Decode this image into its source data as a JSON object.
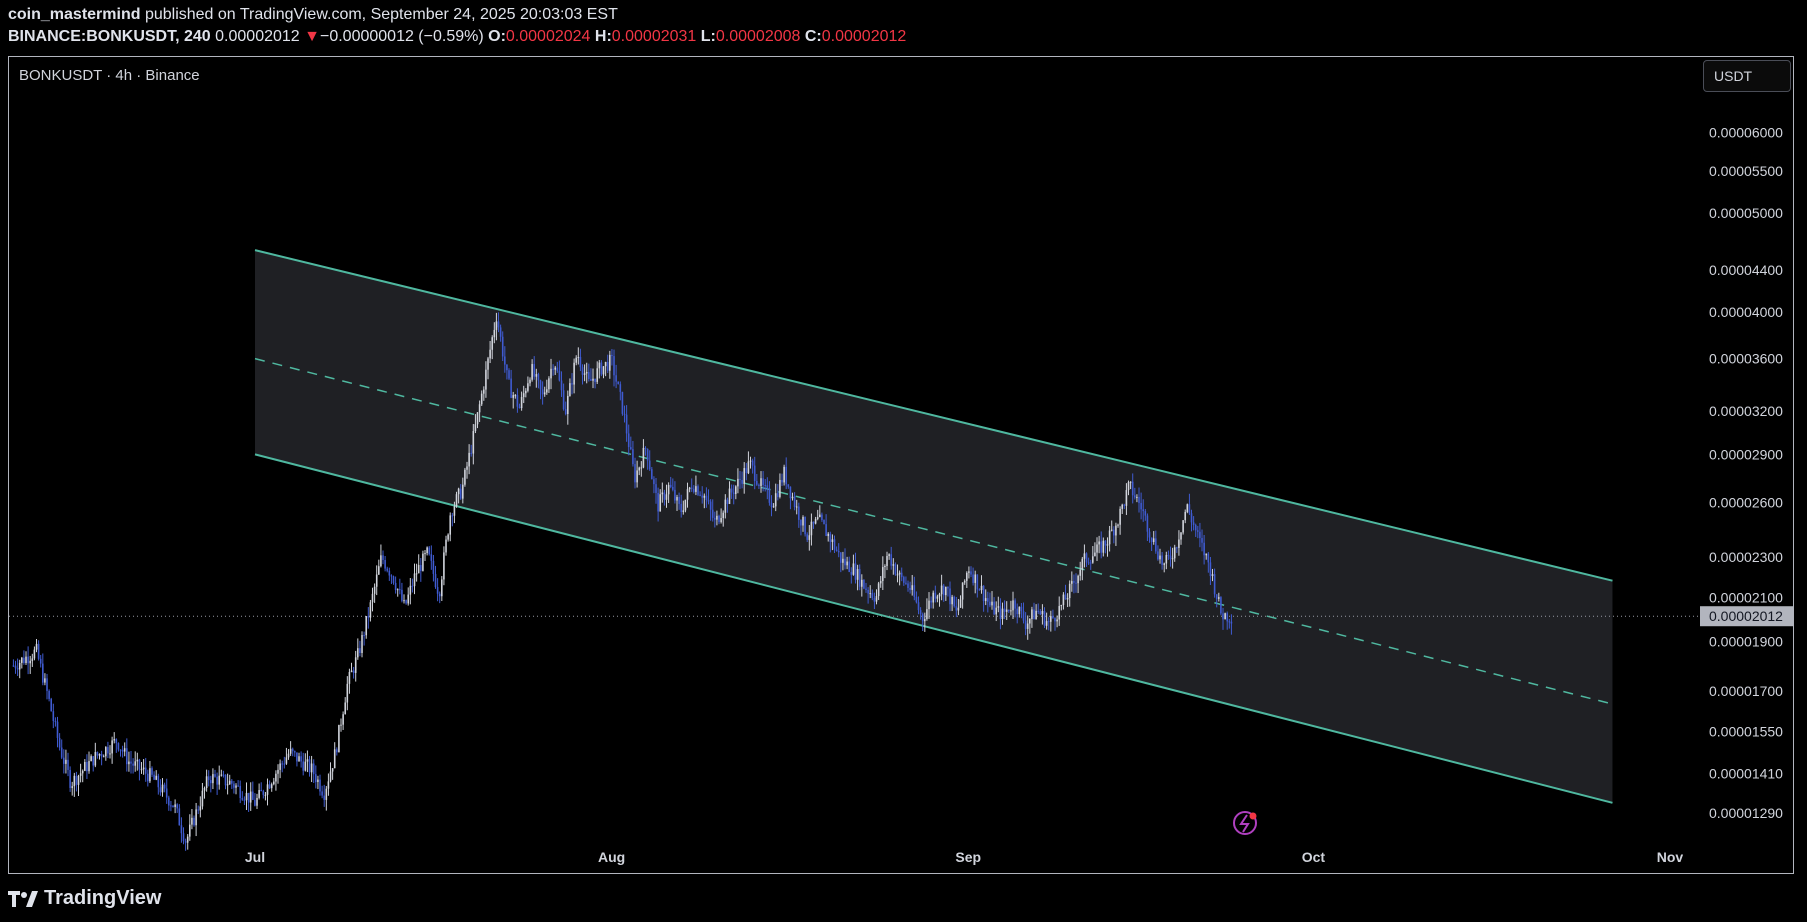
{
  "header": {
    "user": "coin_mastermind",
    "published": "published on TradingView.com, September 24, 2025 20:03:03 EST",
    "symbol": "BINANCE:BONKUSDT, 240",
    "last": "0.00002012",
    "change_arrow": "▼",
    "change": "−0.00000012 (−0.59%)",
    "o_label": "O:",
    "o_value": "0.00002024",
    "h_label": "H:",
    "h_value": "0.00002031",
    "l_label": "L:",
    "l_value": "0.00002008",
    "c_label": "C:",
    "c_value": "0.00002012"
  },
  "legend_title": "BONKUSDT · 4h · Binance",
  "currency_button": "USDT",
  "footer_brand": "TradingView",
  "colors": {
    "background": "#000000",
    "channel_line": "#4fb8a0",
    "channel_fill": "#1f2024",
    "candle_up": "#d1d4dc",
    "candle_down": "#3f5bd1",
    "price_tag": "#b2b5be",
    "header_red": "#f23645"
  },
  "chart_data": {
    "type": "candlestick",
    "symbol": "BONKUSDT",
    "interval": "4h",
    "exchange": "Binance",
    "price_scale": "log",
    "y_ticks": [
      "0.00006000",
      "0.00005500",
      "0.00005000",
      "0.00004400",
      "0.00004000",
      "0.00003600",
      "0.00003200",
      "0.00002900",
      "0.00002600",
      "0.00002300",
      "0.00002100",
      "0.00001900",
      "0.00001700",
      "0.00001550",
      "0.00001410",
      "0.00001290"
    ],
    "x_ticks": [
      "Jul",
      "Aug",
      "Sep",
      "Oct",
      "Nov"
    ],
    "x_range": [
      "2025-06-10",
      "2025-11-02"
    ],
    "y_range": [
      1.16e-05,
      6.8e-05
    ],
    "last_price": "0.00002012",
    "price_path": [
      [
        "2025-06-10",
        1.8e-05
      ],
      [
        "2025-06-12",
        1.86e-05
      ],
      [
        "2025-06-13",
        1.68e-05
      ],
      [
        "2025-06-14",
        1.5e-05
      ],
      [
        "2025-06-15",
        1.38e-05
      ],
      [
        "2025-06-17",
        1.46e-05
      ],
      [
        "2025-06-19",
        1.52e-05
      ],
      [
        "2025-06-20",
        1.45e-05
      ],
      [
        "2025-06-22",
        1.4e-05
      ],
      [
        "2025-06-24",
        1.31e-05
      ],
      [
        "2025-06-25",
        1.21e-05
      ],
      [
        "2025-06-27",
        1.4e-05
      ],
      [
        "2025-06-29",
        1.38e-05
      ],
      [
        "2025-07-01",
        1.32e-05
      ],
      [
        "2025-07-02",
        1.37e-05
      ],
      [
        "2025-07-04",
        1.48e-05
      ],
      [
        "2025-07-06",
        1.42e-05
      ],
      [
        "2025-07-07",
        1.35e-05
      ],
      [
        "2025-07-08",
        1.48e-05
      ],
      [
        "2025-07-09",
        1.72e-05
      ],
      [
        "2025-07-10",
        1.85e-05
      ],
      [
        "2025-07-11",
        2.05e-05
      ],
      [
        "2025-07-12",
        2.3e-05
      ],
      [
        "2025-07-13",
        2.2e-05
      ],
      [
        "2025-07-14",
        2.05e-05
      ],
      [
        "2025-07-15",
        2.22e-05
      ],
      [
        "2025-07-16",
        2.32e-05
      ],
      [
        "2025-07-17",
        2.12e-05
      ],
      [
        "2025-07-18",
        2.55e-05
      ],
      [
        "2025-07-19",
        2.68e-05
      ],
      [
        "2025-07-20",
        3.02e-05
      ],
      [
        "2025-07-21",
        3.45e-05
      ],
      [
        "2025-07-22",
        3.98e-05
      ],
      [
        "2025-07-23",
        3.4e-05
      ],
      [
        "2025-07-24",
        3.22e-05
      ],
      [
        "2025-07-25",
        3.52e-05
      ],
      [
        "2025-07-26",
        3.3e-05
      ],
      [
        "2025-07-27",
        3.6e-05
      ],
      [
        "2025-07-28",
        3.2e-05
      ],
      [
        "2025-07-29",
        3.65e-05
      ],
      [
        "2025-07-30",
        3.4e-05
      ],
      [
        "2025-07-31",
        3.52e-05
      ],
      [
        "2025-08-01",
        3.58e-05
      ],
      [
        "2025-08-02",
        3.2e-05
      ],
      [
        "2025-08-03",
        2.75e-05
      ],
      [
        "2025-08-04",
        2.95e-05
      ],
      [
        "2025-08-05",
        2.58e-05
      ],
      [
        "2025-08-06",
        2.7e-05
      ],
      [
        "2025-08-07",
        2.55e-05
      ],
      [
        "2025-08-08",
        2.72e-05
      ],
      [
        "2025-08-09",
        2.65e-05
      ],
      [
        "2025-08-10",
        2.48e-05
      ],
      [
        "2025-08-11",
        2.62e-05
      ],
      [
        "2025-08-12",
        2.72e-05
      ],
      [
        "2025-08-13",
        2.84e-05
      ],
      [
        "2025-08-14",
        2.7e-05
      ],
      [
        "2025-08-15",
        2.6e-05
      ],
      [
        "2025-08-16",
        2.78e-05
      ],
      [
        "2025-08-17",
        2.58e-05
      ],
      [
        "2025-08-18",
        2.42e-05
      ],
      [
        "2025-08-19",
        2.5e-05
      ],
      [
        "2025-08-20",
        2.4e-05
      ],
      [
        "2025-08-21",
        2.28e-05
      ],
      [
        "2025-08-22",
        2.24e-05
      ],
      [
        "2025-08-23",
        2.15e-05
      ],
      [
        "2025-08-24",
        2.1e-05
      ],
      [
        "2025-08-25",
        2.32e-05
      ],
      [
        "2025-08-26",
        2.2e-05
      ],
      [
        "2025-08-27",
        2.14e-05
      ],
      [
        "2025-08-28",
        2e-05
      ],
      [
        "2025-08-29",
        2.12e-05
      ],
      [
        "2025-08-30",
        2.15e-05
      ],
      [
        "2025-08-31",
        2.02e-05
      ],
      [
        "2025-09-01",
        2.25e-05
      ],
      [
        "2025-09-02",
        2.15e-05
      ],
      [
        "2025-09-03",
        2.05e-05
      ],
      [
        "2025-09-04",
        2.02e-05
      ],
      [
        "2025-09-05",
        2.08e-05
      ],
      [
        "2025-09-06",
        1.98e-05
      ],
      [
        "2025-09-07",
        2.04e-05
      ],
      [
        "2025-09-08",
        1.98e-05
      ],
      [
        "2025-09-09",
        2.05e-05
      ],
      [
        "2025-09-10",
        2.15e-05
      ],
      [
        "2025-09-11",
        2.28e-05
      ],
      [
        "2025-09-12",
        2.32e-05
      ],
      [
        "2025-09-13",
        2.38e-05
      ],
      [
        "2025-09-14",
        2.5e-05
      ],
      [
        "2025-09-15",
        2.7e-05
      ],
      [
        "2025-09-16",
        2.58e-05
      ],
      [
        "2025-09-17",
        2.4e-05
      ],
      [
        "2025-09-18",
        2.25e-05
      ],
      [
        "2025-09-19",
        2.35e-05
      ],
      [
        "2025-09-20",
        2.58e-05
      ],
      [
        "2025-09-21",
        2.4e-05
      ],
      [
        "2025-09-22",
        2.25e-05
      ],
      [
        "2025-09-23",
        2.02e-05
      ],
      [
        "2025-09-24",
        2.01e-05
      ]
    ],
    "channel": {
      "start": "2025-07-01",
      "end": "2025-10-27",
      "upper": [
        4.6e-05,
        2.18e-05
      ],
      "middle": [
        3.6e-05,
        1.65e-05
      ],
      "lower": [
        2.9e-05,
        1.32e-05
      ]
    }
  }
}
